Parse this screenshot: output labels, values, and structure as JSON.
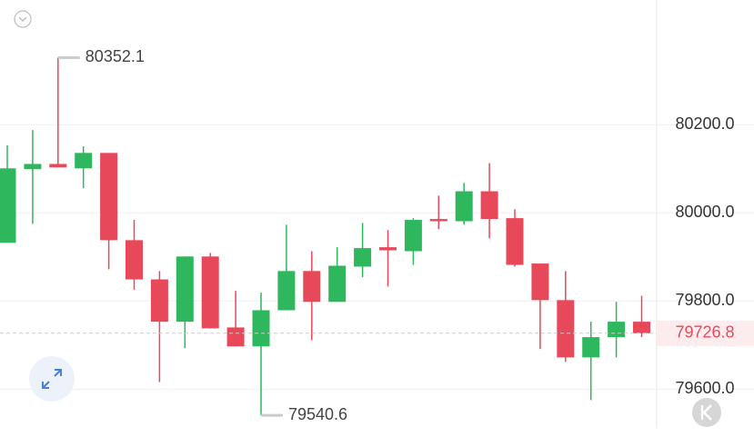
{
  "chart_data": {
    "type": "candlestick",
    "open": [
      79932,
      80099,
      80111,
      80101,
      80136,
      79938,
      79849,
      79753,
      79901,
      79740,
      79697,
      79779,
      79868,
      79798,
      79878,
      79922,
      79913,
      79986,
      79981,
      80049,
      79988,
      79885,
      79802,
      79672,
      79718,
      79753
    ],
    "high": [
      80153,
      80188,
      80352.1,
      80151,
      80136,
      79984,
      79868,
      79901,
      79909,
      79823,
      79819,
      79973,
      79913,
      79922,
      79977,
      79961,
      79988,
      80039,
      80068,
      80113,
      80008,
      79885,
      79868,
      79753,
      79798,
      79812
    ],
    "low": [
      79932,
      79975,
      80103,
      80056,
      79872,
      79825,
      79616,
      79693,
      79738,
      79697,
      79540.6,
      79779,
      79711,
      79798,
      79854,
      79833,
      79882,
      79963,
      79973,
      79942,
      79878,
      79691,
      79662,
      79575,
      79672,
      79718
    ],
    "close": [
      80101,
      80111,
      80103,
      80136,
      79938,
      79849,
      79753,
      79901,
      79738,
      79697,
      79779,
      79868,
      79798,
      79880,
      79920,
      79915,
      79984,
      79981,
      80049,
      79986,
      79882,
      79802,
      79672,
      79718,
      79753,
      79726.8
    ],
    "up_color": "#2fb75d",
    "down_color": "#e8495a",
    "ylim": [
      79512,
      80483
    ],
    "yticks": [
      {
        "value": 79600,
        "label": "79600.0"
      },
      {
        "value": 79800,
        "label": "79800.0"
      },
      {
        "value": 80000,
        "label": "80000.0"
      },
      {
        "value": 80200,
        "label": "80200.0"
      }
    ],
    "grid": true
  }
}
